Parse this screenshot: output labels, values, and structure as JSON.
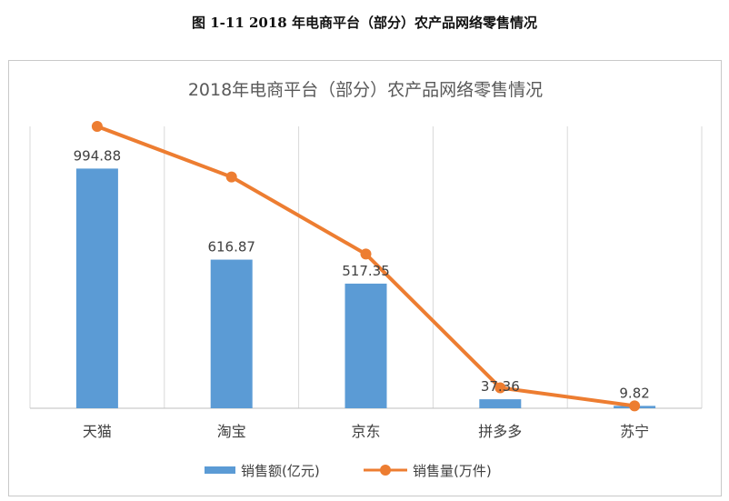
{
  "figure_caption": "图 1-11 2018 年电商平台（部分）农产品网络零售情况",
  "chart_data": {
    "type": "bar",
    "title": "2018年电商平台（部分）农产品网络零售情况",
    "categories": [
      "天猫",
      "淘宝",
      "京东",
      "拼多多",
      "苏宁"
    ],
    "series": [
      {
        "name": "销售额(亿元)",
        "type": "bar",
        "color": "#5b9bd5",
        "values": [
          994.88,
          616.87,
          517.35,
          37.36,
          9.82
        ],
        "data_labels": [
          "994.88",
          "616.87",
          "517.35",
          "37.36",
          "9.82"
        ]
      },
      {
        "name": "销售量(万件)",
        "type": "line",
        "color": "#ed7d31",
        "values": [
          1170,
          960,
          640,
          85,
          10
        ]
      }
    ],
    "xlabel": "",
    "ylabel": "",
    "ylim": [
      0,
      1170
    ],
    "grid": "vertical",
    "legend": "bottom"
  }
}
